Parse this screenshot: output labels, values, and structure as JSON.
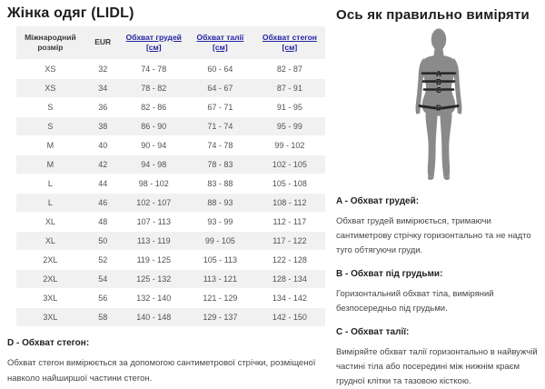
{
  "left": {
    "title": "Жінка одяг (LIDL)",
    "table": {
      "headers": {
        "size": "Міжнародний розмір",
        "eur": "EUR",
        "chest": "Обхват грудей",
        "waist": "Обхват талії",
        "hips": "Обхват стегон",
        "unit": "[см]"
      },
      "rows": [
        [
          "XS",
          "32",
          "74 - 78",
          "60 - 64",
          "82 - 87"
        ],
        [
          "XS",
          "34",
          "78 - 82",
          "64 - 67",
          "87 - 91"
        ],
        [
          "S",
          "36",
          "82 - 86",
          "67 - 71",
          "91 - 95"
        ],
        [
          "S",
          "38",
          "86 - 90",
          "71 - 74",
          "95 - 99"
        ],
        [
          "M",
          "40",
          "90 - 94",
          "74 - 78",
          "99 - 102"
        ],
        [
          "M",
          "42",
          "94 - 98",
          "78 - 83",
          "102 - 105"
        ],
        [
          "L",
          "44",
          "98 - 102",
          "83 - 88",
          "105 - 108"
        ],
        [
          "L",
          "46",
          "102 - 107",
          "88 - 93",
          "108 - 112"
        ],
        [
          "XL",
          "48",
          "107 - 113",
          "93 - 99",
          "112 - 117"
        ],
        [
          "XL",
          "50",
          "113 - 119",
          "99 - 105",
          "117 - 122"
        ],
        [
          "2XL",
          "52",
          "119 - 125",
          "105 - 113",
          "122 - 128"
        ],
        [
          "2XL",
          "54",
          "125 - 132",
          "113 - 121",
          "128 - 134"
        ],
        [
          "3XL",
          "56",
          "132 - 140",
          "121 - 129",
          "134 - 142"
        ],
        [
          "3XL",
          "58",
          "140 - 148",
          "129 - 137",
          "142 - 150"
        ]
      ]
    },
    "section_d": {
      "heading": "D - Обхват стегон:",
      "text": "Обхват стегон вимірюється за допомогою сантиметрової стрічки, розміщеної навколо найширшої частини стегон."
    }
  },
  "right": {
    "title": "Ось як правильно виміряти",
    "figure": {
      "labels": [
        "A",
        "B",
        "C",
        "D"
      ]
    },
    "sections": [
      {
        "heading": "A - Обхват грудей:",
        "text": "Обхват грудей вимірюється, тримаючи сантиметрову стрічку горизонтально та не надто туго обтягуючи груди."
      },
      {
        "heading": "B - Обхват під грудьми:",
        "text": "Горизонтальний обхват тіла, виміряний безпосередньо під грудьми."
      },
      {
        "heading": "C - Обхват талії:",
        "text": "Виміряйте обхват талії горизонтально в найвужчій частині тіла або посередині між нижнім краєм грудної клітки та тазовою кісткою."
      }
    ]
  },
  "colors": {
    "link": "#2323a1",
    "row_stripe": "#f1f1f1",
    "silhouette": "#8a8a8a"
  }
}
